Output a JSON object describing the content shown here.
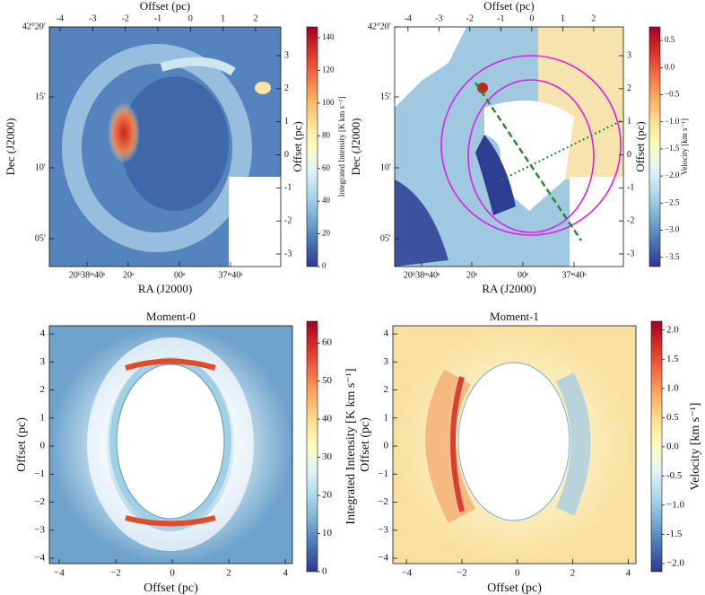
{
  "chart_data": [
    {
      "type": "image",
      "xlabel": "RA (J2000)",
      "ylabel": "Dec (J2000)",
      "xtick_labels": [
        "20ʰ38ᵐ40ˢ",
        "20ˢ",
        "00ˢ",
        "37ᵐ40ˢ"
      ],
      "ytick_labels": [
        "42°20′",
        "15′",
        "10′",
        "05′"
      ],
      "x2label": "Offset (pc)",
      "x2lim": [
        -4.33,
        2.77
      ],
      "x2ticks": [
        -4,
        -3,
        -2,
        -1,
        0,
        1,
        2
      ],
      "y2label": "Offset (pc)",
      "y2lim": [
        -3.38,
        3.87
      ],
      "y2ticks": [
        -3,
        -2,
        -1,
        0,
        1,
        2,
        3
      ],
      "colorbar": {
        "label": "Integrated Intensity [K km s⁻¹]",
        "lim": [
          0,
          146.6
        ],
        "ticks": [
          0,
          20,
          40,
          60,
          80,
          100,
          120,
          140
        ]
      }
    },
    {
      "type": "image",
      "xlabel": "RA (J2000)",
      "ylabel": "Dec (J2000)",
      "xtick_labels": [
        "20ʰ38ᵐ40ˢ",
        "20ˢ",
        "00ˢ",
        "37ᵐ40ˢ"
      ],
      "ytick_labels": [
        "42°20′",
        "15′",
        "10′",
        "05′"
      ],
      "x2label": "Offset (pc)",
      "x2lim": [
        -4.43,
        2.96
      ],
      "x2ticks": [
        -4,
        -3,
        -2,
        -1,
        0,
        1,
        2
      ],
      "y2label": "Offset (pc)",
      "y2lim": [
        -3.38,
        3.87
      ],
      "y2ticks": [
        -3,
        -2,
        -1,
        0,
        1,
        2,
        3
      ],
      "colorbar": {
        "label": "Velocity [km s⁻¹]",
        "lim": [
          -3.67,
          0.75
        ],
        "ticks": [
          {
            "value": -3.5,
            "label": "−3.5"
          },
          {
            "value": -3.0,
            "label": "−3.0"
          },
          {
            "value": -2.5,
            "label": "−2.5"
          },
          {
            "value": -2.0,
            "label": "−2.0"
          },
          {
            "value": -1.5,
            "label": "−1.5"
          },
          {
            "value": -1.0,
            "label": "−1.0"
          },
          {
            "value": -0.5,
            "label": "−0.5"
          },
          {
            "value": 0,
            "label": "0.0"
          },
          0.5
        ]
      }
    },
    {
      "type": "image",
      "title": "Moment-0",
      "xlabel": "Offset (pc)",
      "ylabel": "Offset (pc)",
      "xlim": [
        -4.35,
        4.25
      ],
      "xticks": [
        {
          "value": -4,
          "label": "−4"
        },
        {
          "value": -2,
          "label": "−2"
        },
        0,
        2,
        4
      ],
      "ylim": [
        -4.19,
        4.29
      ],
      "yticks": [
        {
          "value": -4,
          "label": "−4"
        },
        {
          "value": -3,
          "label": "−3"
        },
        {
          "value": -2,
          "label": "−2"
        },
        {
          "value": -1,
          "label": "−1"
        },
        0,
        1,
        2,
        3,
        4
      ],
      "colorbar": {
        "label": "Integrated Intensity [K km s⁻¹]",
        "lim": [
          0,
          65.7
        ],
        "ticks": [
          0,
          10,
          20,
          30,
          40,
          50,
          60
        ]
      }
    },
    {
      "type": "image",
      "title": "Moment-1",
      "xlabel": "Offset (pc)",
      "ylabel": "Offset (pc)",
      "xlim": [
        -4.49,
        4.28
      ],
      "xticks": [
        {
          "value": -4,
          "label": "−4"
        },
        {
          "value": -2,
          "label": "−2"
        },
        0,
        2,
        4
      ],
      "ylim": [
        -4.19,
        4.29
      ],
      "yticks": [
        {
          "value": -4,
          "label": "−4"
        },
        {
          "value": -3,
          "label": "−3"
        },
        {
          "value": -2,
          "label": "−2"
        },
        {
          "value": -1,
          "label": "−1"
        },
        0,
        1,
        2,
        3,
        4
      ],
      "colorbar": {
        "label": "Velocity [km s⁻¹]",
        "lim": [
          -2.14,
          2.15
        ],
        "ticks": [
          {
            "value": -2.0,
            "label": "−2.0"
          },
          -1.5,
          {
            "value": -1.0,
            "label": "−1.0"
          },
          -0.5,
          {
            "value": 0,
            "label": "0.0"
          },
          0.5,
          {
            "value": 1.0,
            "label": "1.0"
          },
          1.5,
          {
            "value": 2.0,
            "label": "2.0"
          }
        ]
      }
    }
  ]
}
